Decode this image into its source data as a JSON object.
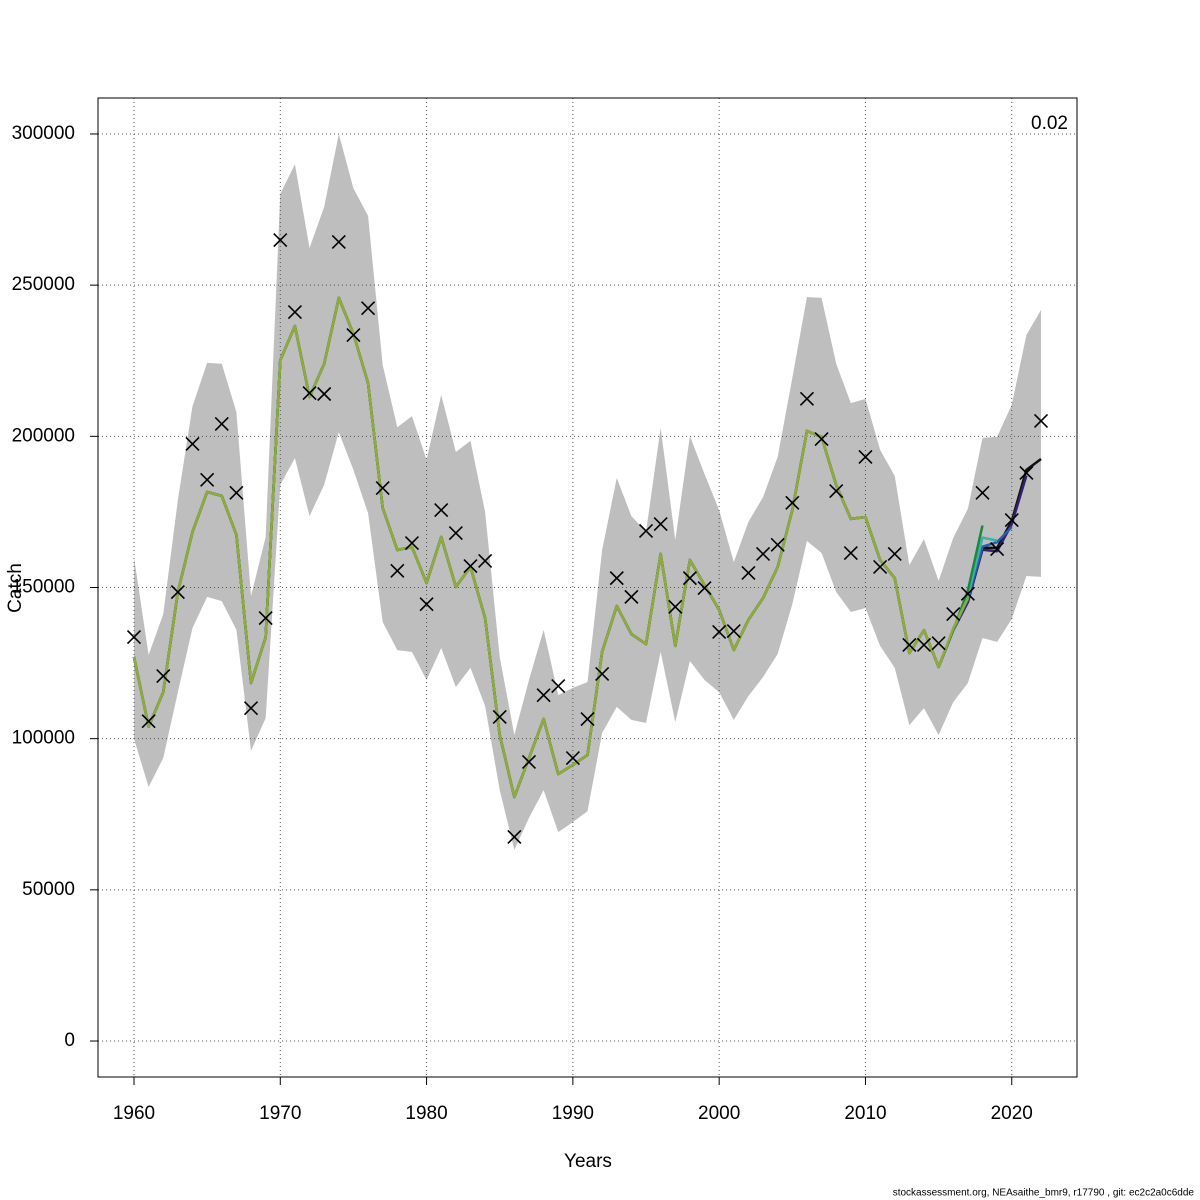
{
  "chart_data": {
    "type": "line",
    "xlabel": "Years",
    "ylabel": "Catch",
    "annotation": "0.02",
    "footer": "stockassessment.org, NEAsaithe_bmr9, r17790 , git: ec2c2a0c6dde",
    "xlim": [
      1957.54,
      2024.46
    ],
    "ylim": [
      -11900,
      311900
    ],
    "xticks": [
      1960,
      1970,
      1980,
      1990,
      2000,
      2010,
      2020
    ],
    "yticks": [
      0,
      50000,
      100000,
      150000,
      200000,
      250000,
      300000
    ],
    "grid": true,
    "x": [
      1960,
      1961,
      1962,
      1963,
      1964,
      1965,
      1966,
      1967,
      1968,
      1969,
      1970,
      1971,
      1972,
      1973,
      1974,
      1975,
      1976,
      1977,
      1978,
      1979,
      1980,
      1981,
      1982,
      1983,
      1984,
      1985,
      1986,
      1987,
      1988,
      1989,
      1990,
      1991,
      1992,
      1993,
      1994,
      1995,
      1996,
      1997,
      1998,
      1999,
      2000,
      2001,
      2002,
      2003,
      2004,
      2005,
      2006,
      2007,
      2008,
      2009,
      2010,
      2011,
      2012,
      2013,
      2014,
      2015,
      2016,
      2017,
      2018,
      2019,
      2020,
      2021,
      2022
    ],
    "band": {
      "color": "#bebebe",
      "upper": [
        160000,
        127700,
        141200,
        179000,
        210000,
        224300,
        224000,
        208000,
        147200,
        166700,
        280200,
        290000,
        262300,
        275900,
        300000,
        282000,
        272900,
        223600,
        203000,
        206700,
        192200,
        213700,
        194800,
        198500,
        175000,
        127000,
        101200,
        119400,
        136000,
        114400,
        116800,
        118700,
        162400,
        186200,
        173600,
        168400,
        202800,
        165700,
        200100,
        187500,
        175600,
        158400,
        171700,
        179900,
        193200,
        219300,
        246100,
        245800,
        224000,
        211000,
        212400,
        195500,
        186900,
        157400,
        166000,
        152200,
        166400,
        176000,
        199500,
        199800,
        210400,
        233500,
        241800
      ],
      "lower": [
        100000,
        84000,
        93600,
        115400,
        136600,
        146900,
        145500,
        136000,
        96000,
        106800,
        184000,
        192800,
        173600,
        184000,
        201400,
        188900,
        174600,
        138600,
        129300,
        128700,
        119400,
        130000,
        117100,
        123400,
        110800,
        83000,
        63200,
        73800,
        83000,
        69100,
        72400,
        76000,
        101900,
        110500,
        106200,
        105200,
        128700,
        105500,
        125700,
        119400,
        115400,
        106200,
        114100,
        120400,
        128000,
        144500,
        165400,
        161400,
        148500,
        141900,
        143200,
        130700,
        123400,
        104500,
        110100,
        101200,
        112100,
        118400,
        133300,
        132000,
        139600,
        153800,
        153500
      ]
    },
    "series": [
      {
        "color": "#111111",
        "values": [
          127000,
          104000,
          115400,
          148500,
          168400,
          181600,
          180300,
          167400,
          118400,
          133600,
          225200,
          236500,
          213000,
          224000,
          245800,
          233900,
          217600,
          176300,
          162400,
          163400,
          151500,
          166700,
          150200,
          156800,
          139900,
          101200,
          80700,
          93600,
          106500,
          88300,
          91300,
          94600,
          128700,
          143900,
          134600,
          131300,
          161100,
          130700,
          159100,
          150800,
          142600,
          129300,
          139300,
          146500,
          156800,
          175600,
          201800,
          199800,
          183900,
          172700,
          173300,
          159100,
          153100,
          128300,
          135900,
          123700,
          135900,
          145200,
          163100,
          163100,
          172000,
          188900,
          192500
        ]
      },
      {
        "color": "#35206e",
        "values": [
          127000,
          104000,
          115400,
          148500,
          168400,
          181600,
          180300,
          167400,
          118400,
          133600,
          225200,
          236500,
          213000,
          224000,
          245800,
          233900,
          217600,
          176300,
          162400,
          163400,
          151500,
          166700,
          150200,
          156800,
          139900,
          101200,
          80700,
          93600,
          106500,
          88300,
          91300,
          94600,
          128700,
          143900,
          134600,
          131300,
          161100,
          130700,
          159100,
          150800,
          142600,
          129300,
          139300,
          146500,
          156800,
          175600,
          201800,
          199800,
          183900,
          172700,
          173300,
          159100,
          153100,
          128300,
          135900,
          123700,
          135900,
          145200,
          162500,
          162000,
          171000,
          187000,
          null
        ]
      },
      {
        "color": "#2a5ea8",
        "values": [
          127000,
          104000,
          115400,
          148500,
          168400,
          181600,
          180300,
          167400,
          118400,
          133600,
          225200,
          236500,
          213000,
          224000,
          245800,
          233900,
          217600,
          176300,
          162400,
          163400,
          151500,
          166700,
          150200,
          156800,
          139900,
          101200,
          80700,
          93600,
          106500,
          88300,
          91300,
          94600,
          128700,
          143900,
          134600,
          131300,
          161100,
          130700,
          159100,
          150800,
          142600,
          129300,
          139300,
          146500,
          156800,
          175600,
          201800,
          199800,
          183900,
          172700,
          173300,
          159100,
          153100,
          128300,
          135900,
          123700,
          135900,
          146000,
          163500,
          165000,
          170000,
          null,
          null
        ]
      },
      {
        "color": "#3fb0a8",
        "values": [
          127000,
          104000,
          115400,
          148500,
          168400,
          181600,
          180300,
          167400,
          118400,
          133600,
          225200,
          236500,
          213000,
          224000,
          245800,
          233900,
          217600,
          176300,
          162400,
          163400,
          151500,
          166700,
          150200,
          156800,
          139900,
          101200,
          80700,
          93600,
          106500,
          88300,
          91300,
          94600,
          128700,
          143900,
          134600,
          131300,
          161100,
          130700,
          159100,
          150800,
          142600,
          129300,
          139300,
          146500,
          156800,
          175600,
          201800,
          199800,
          183900,
          172700,
          173300,
          159100,
          153100,
          128300,
          135900,
          123700,
          135900,
          147000,
          166500,
          165500,
          null,
          null,
          null
        ]
      },
      {
        "color": "#1a8a3a",
        "values": [
          127000,
          104000,
          115400,
          148500,
          168400,
          181600,
          180300,
          167400,
          118400,
          133600,
          225200,
          236500,
          213000,
          224000,
          245800,
          233900,
          217600,
          176300,
          162400,
          163400,
          151500,
          166700,
          150200,
          156800,
          139900,
          101200,
          80700,
          93600,
          106500,
          88300,
          91300,
          94600,
          128700,
          143900,
          134600,
          131300,
          161100,
          130700,
          159100,
          150800,
          142600,
          129300,
          139300,
          146500,
          156800,
          175600,
          201800,
          199800,
          183900,
          172700,
          173300,
          159100,
          153100,
          128300,
          135900,
          123700,
          135900,
          149000,
          170500,
          null,
          null,
          null,
          null
        ]
      },
      {
        "color": "#94a93a",
        "values": [
          127000,
          104000,
          115400,
          148500,
          168400,
          181600,
          180300,
          167400,
          118400,
          133600,
          225200,
          236500,
          213000,
          224000,
          245800,
          233900,
          217600,
          176300,
          162400,
          163400,
          151500,
          166700,
          150200,
          156800,
          139900,
          101200,
          80700,
          93600,
          106500,
          88300,
          91300,
          94600,
          128700,
          143900,
          134600,
          131300,
          161100,
          130700,
          159100,
          150800,
          142600,
          129300,
          139300,
          146500,
          156800,
          175600,
          201800,
          199800,
          183900,
          172700,
          173300,
          159100,
          153100,
          128300,
          135900,
          123700,
          136500,
          146500,
          null,
          null,
          null,
          null,
          null
        ]
      }
    ],
    "observed": {
      "color": "#000000",
      "values": [
        133600,
        105800,
        120700,
        148500,
        197500,
        185600,
        204100,
        181300,
        110100,
        139900,
        264900,
        241100,
        214300,
        214000,
        264300,
        233500,
        242400,
        182900,
        155500,
        164700,
        144500,
        175600,
        168000,
        157100,
        158800,
        107200,
        67500,
        92300,
        114400,
        117400,
        93600,
        106500,
        121400,
        153100,
        146900,
        168700,
        171000,
        143600,
        153100,
        149800,
        135300,
        135600,
        154800,
        161100,
        164100,
        178000,
        212400,
        199100,
        181900,
        161400,
        193200,
        156800,
        161100,
        131000,
        131000,
        131600,
        141200,
        147900,
        181300,
        162700,
        172300,
        187900,
        205100
      ]
    }
  }
}
